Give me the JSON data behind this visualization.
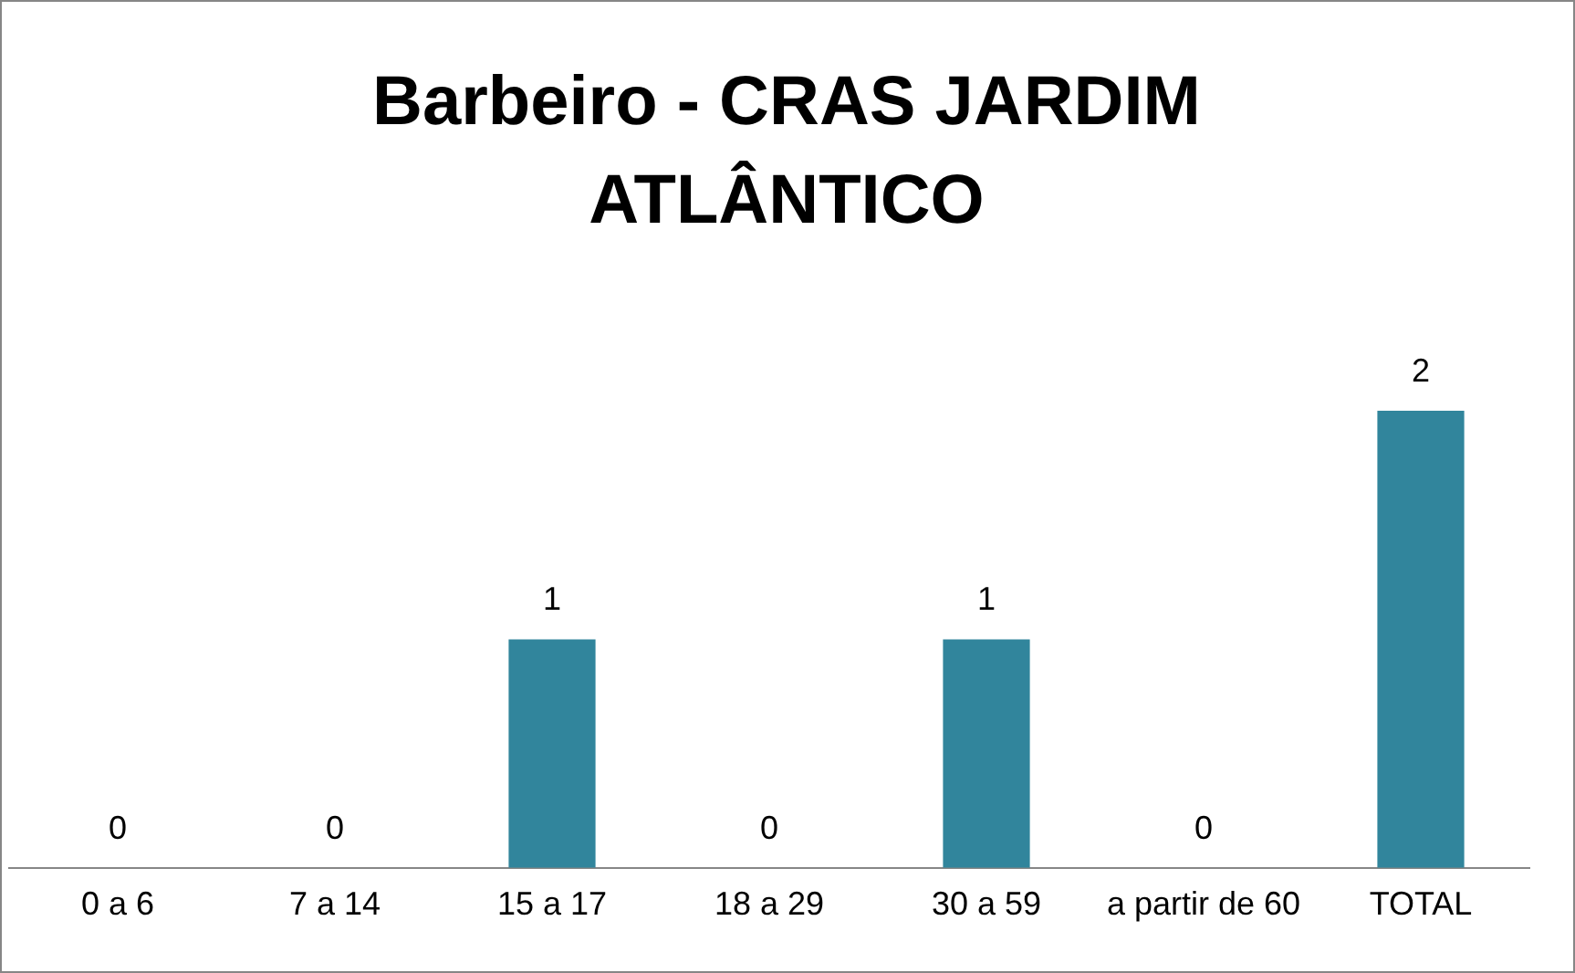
{
  "chart_data": {
    "type": "bar",
    "title": "Barbeiro - CRAS JARDIM ATLÂNTICO",
    "categories": [
      "0 a 6",
      "7 a 14",
      "15 a 17",
      "18 a 29",
      "30 a 59",
      "a partir de 60",
      "TOTAL"
    ],
    "values": [
      0,
      0,
      1,
      0,
      1,
      0,
      2
    ],
    "color": "#31859c",
    "data_labels": true,
    "grid": false,
    "legend": false
  }
}
